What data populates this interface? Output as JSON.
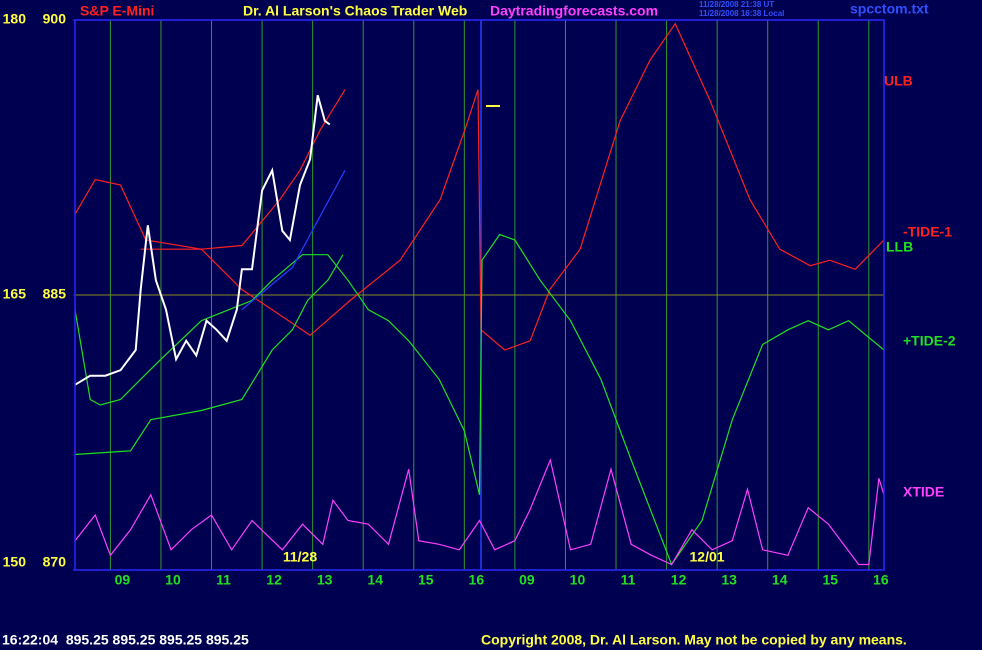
{
  "chart_data": {
    "type": "line",
    "instrument": "S&P E-Mini",
    "title": "Dr. Al Larson's Chaos Trader Web",
    "site": "Daytradingforecasts.com",
    "time_ut": "11/28/2008 21:38 UT",
    "time_local": "11/28/2008 16:38 Local",
    "file": "spcctom.txt",
    "quote": "16:22:04  895.25 895.25 895.25 895.25",
    "copyright": "Copyright 2008, Dr. Al Larson. May not be copied by any means.",
    "annotations": [
      {
        "text": "11/28",
        "x": 4.45
      },
      {
        "text": "12/01",
        "x": 12.5
      }
    ],
    "xlim": [
      0,
      16
    ],
    "xticks": [
      {
        "value": 0.7,
        "label": "09"
      },
      {
        "value": 1.7,
        "label": "10"
      },
      {
        "value": 2.7,
        "label": "11"
      },
      {
        "value": 3.7,
        "label": "12"
      },
      {
        "value": 4.7,
        "label": "13"
      },
      {
        "value": 5.7,
        "label": "14"
      },
      {
        "value": 6.7,
        "label": "15"
      },
      {
        "value": 7.7,
        "label": "16"
      },
      {
        "value": 8.7,
        "label": "09"
      },
      {
        "value": 9.7,
        "label": "10"
      },
      {
        "value": 10.7,
        "label": "11"
      },
      {
        "value": 11.7,
        "label": "12"
      },
      {
        "value": 12.7,
        "label": "13"
      },
      {
        "value": 13.7,
        "label": "14"
      },
      {
        "value": 14.7,
        "label": "15"
      },
      {
        "value": 15.7,
        "label": "16"
      }
    ],
    "ylim": [
      870,
      900
    ],
    "yticks": [
      870,
      885,
      900
    ],
    "y2lim": [
      150,
      180
    ],
    "y2ticks": [
      150,
      165,
      180
    ],
    "grid": true,
    "series": [
      {
        "name": "ULB",
        "color": "#ff2020",
        "x": [
          0,
          0.4,
          0.9,
          1.4,
          2.5,
          3.3,
          4.05,
          4.45,
          4.85,
          5.34
        ],
        "values": [
          889.4,
          891.3,
          891.0,
          888.0,
          887.5,
          887.7,
          890.2,
          891.8,
          894.0,
          896.2
        ]
      },
      {
        "name": "-TIDE-1",
        "color": "#ff2020",
        "x": [
          1.3,
          2.5,
          3.3,
          3.9,
          4.65,
          5.44,
          6.43,
          7.22,
          7.71,
          7.97,
          8.03,
          8.5,
          9.0,
          9.39,
          9.99,
          10.78,
          11.37,
          11.87,
          12.56,
          13.35,
          13.94,
          14.54,
          14.93,
          15.43,
          16
        ],
        "values": [
          887.5,
          887.5,
          885.3,
          884.2,
          882.8,
          884.7,
          886.9,
          890.2,
          894.0,
          896.2,
          883.1,
          882.0,
          882.5,
          885.3,
          887.5,
          894.5,
          897.8,
          899.8,
          895.6,
          890.2,
          887.5,
          886.6,
          886.9,
          886.4,
          888.0
        ]
      },
      {
        "name": "LLB",
        "color": "#20e020",
        "x": [
          0,
          1.1,
          1.5,
          2.5,
          3.3,
          3.9,
          4.3,
          4.6,
          5.0,
          5.3
        ],
        "values": [
          876.3,
          876.5,
          878.2,
          878.7,
          879.3,
          882.0,
          883.1,
          884.7,
          885.8,
          887.2
        ]
      },
      {
        "name": "+TIDE-2",
        "color": "#20e020",
        "x": [
          0,
          0.3,
          0.5,
          0.9,
          1.3,
          1.7,
          2.5,
          3.5,
          3.9,
          4.5,
          5.0,
          5.4,
          5.8,
          6.2,
          6.6,
          7.2,
          7.7,
          8.0,
          8.05,
          8.4,
          8.7,
          9.2,
          9.8,
          10.4,
          11.0,
          11.8,
          12.4,
          13.0,
          13.6,
          14.1,
          14.5,
          14.9,
          15.3,
          16
        ],
        "values": [
          884.2,
          879.3,
          879.0,
          879.3,
          880.4,
          881.5,
          883.6,
          884.7,
          885.8,
          887.2,
          887.2,
          885.8,
          884.2,
          883.6,
          882.5,
          880.4,
          877.6,
          874.1,
          886.9,
          888.3,
          888.0,
          885.8,
          883.6,
          880.4,
          876.0,
          870.3,
          872.7,
          878.2,
          882.3,
          883.1,
          883.6,
          883.1,
          883.6,
          882.0
        ]
      },
      {
        "name": "XTIDE",
        "color": "#ff40ff",
        "x": [
          0,
          0.4,
          0.7,
          1.1,
          1.5,
          1.9,
          2.3,
          2.7,
          3.1,
          3.5,
          3.8,
          4.1,
          4.5,
          4.9,
          5.1,
          5.4,
          5.8,
          6.2,
          6.6,
          6.8,
          7.2,
          7.6,
          8.0,
          8.3,
          8.7,
          9.0,
          9.4,
          9.8,
          10.2,
          10.6,
          11.0,
          11.4,
          11.8,
          12.2,
          12.6,
          13.0,
          13.3,
          13.6,
          14.1,
          14.5,
          14.9,
          15.5,
          15.7,
          15.9,
          16
        ],
        "values": [
          871.6,
          873.0,
          870.8,
          872.2,
          874.1,
          871.1,
          872.2,
          873.0,
          871.1,
          872.7,
          871.9,
          871.1,
          872.5,
          871.4,
          873.8,
          872.7,
          872.5,
          871.4,
          875.5,
          871.6,
          871.4,
          871.1,
          872.7,
          871.1,
          871.6,
          873.3,
          876.0,
          871.1,
          871.4,
          875.5,
          871.4,
          870.8,
          870.3,
          872.2,
          871.1,
          871.6,
          874.4,
          871.1,
          870.8,
          873.4,
          872.5,
          870.3,
          870.3,
          875.0,
          874.1
        ]
      },
      {
        "color": "#ffffff",
        "x": [
          0,
          0.3,
          0.6,
          0.9,
          1.2,
          1.3,
          1.44,
          1.6,
          1.8,
          2.0,
          2.2,
          2.4,
          2.6,
          2.8,
          3.0,
          3.2,
          3.3,
          3.5,
          3.7,
          3.9,
          4.1,
          4.25,
          4.45,
          4.65,
          4.8,
          4.94,
          5.04
        ],
        "values": [
          880.1,
          880.6,
          880.6,
          880.9,
          882.0,
          885.3,
          888.8,
          885.8,
          884.2,
          881.5,
          882.5,
          881.7,
          883.6,
          883.1,
          882.5,
          884.2,
          886.4,
          886.4,
          890.7,
          891.8,
          888.5,
          888.0,
          891.0,
          892.4,
          895.9,
          894.5,
          894.3
        ]
      },
      {
        "color": "#2040ff",
        "x": [
          3.3,
          4.3,
          5.34
        ],
        "values": [
          884.2,
          886.5,
          891.8
        ]
      }
    ]
  }
}
